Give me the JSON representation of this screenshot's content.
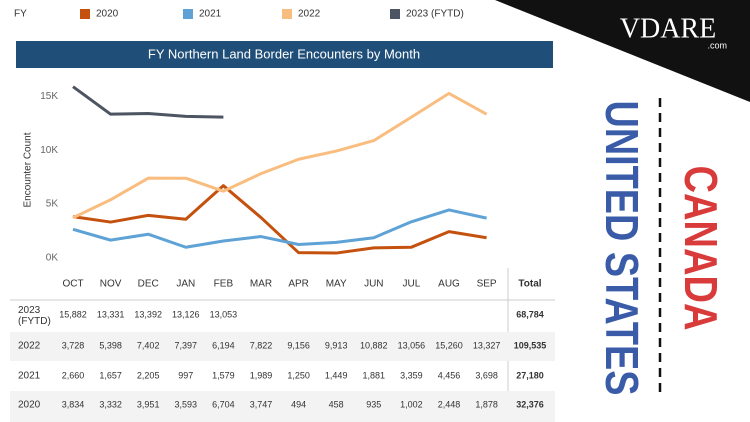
{
  "chart_data": {
    "type": "line",
    "title": "FY Northern Land Border Encounters by Month",
    "legend_title": "FY",
    "ylabel": "Encounter Count",
    "categories": [
      "OCT",
      "NOV",
      "DEC",
      "JAN",
      "FEB",
      "MAR",
      "APR",
      "MAY",
      "JUN",
      "JUL",
      "AUG",
      "SEP"
    ],
    "ylim": [
      0,
      16500
    ],
    "yticks": [
      {
        "value": 0,
        "label": "0K"
      },
      {
        "value": 5000,
        "label": "5K"
      },
      {
        "value": 10000,
        "label": "10K"
      },
      {
        "value": 15000,
        "label": "15K"
      }
    ],
    "grid": false,
    "total_header": "Total",
    "series": [
      {
        "name": "2020",
        "color": "#c4520e",
        "values": [
          3834,
          3332,
          3951,
          3593,
          6704,
          3747,
          494,
          458,
          935,
          1002,
          2448,
          1878
        ],
        "value_labels": [
          "3,834",
          "3,332",
          "3,951",
          "3,593",
          "6,704",
          "3,747",
          "494",
          "458",
          "935",
          "1,002",
          "2,448",
          "1,878"
        ],
        "total": "32,376"
      },
      {
        "name": "2021",
        "color": "#5ea2d6",
        "values": [
          2660,
          1657,
          2205,
          997,
          1579,
          1989,
          1250,
          1449,
          1881,
          3359,
          4456,
          3698
        ],
        "value_labels": [
          "2,660",
          "1,657",
          "2,205",
          "997",
          "1,579",
          "1,989",
          "1,250",
          "1,449",
          "1,881",
          "3,359",
          "4,456",
          "3,698"
        ],
        "total": "27,180"
      },
      {
        "name": "2022",
        "color": "#f9bd80",
        "values": [
          3728,
          5398,
          7402,
          7397,
          6194,
          7822,
          9156,
          9913,
          10882,
          13056,
          15260,
          13327
        ],
        "value_labels": [
          "3,728",
          "5,398",
          "7,402",
          "7,397",
          "6,194",
          "7,822",
          "9,156",
          "9,913",
          "10,882",
          "13,056",
          "15,260",
          "13,327"
        ],
        "total": "109,535"
      },
      {
        "name": "2023 (FYTD)",
        "color": "#4d5563",
        "values": [
          15882,
          13331,
          13392,
          13126,
          13053,
          null,
          null,
          null,
          null,
          null,
          null,
          null
        ],
        "value_labels": [
          "15,882",
          "13,331",
          "13,392",
          "13,126",
          "13,053",
          null,
          null,
          null,
          null,
          null,
          null,
          null
        ],
        "total": "68,784"
      }
    ]
  },
  "overlay": {
    "logo": "VDARE",
    "logo_suffix": ".com",
    "country_left": "UNITED STATES",
    "country_right": "CANADA"
  }
}
